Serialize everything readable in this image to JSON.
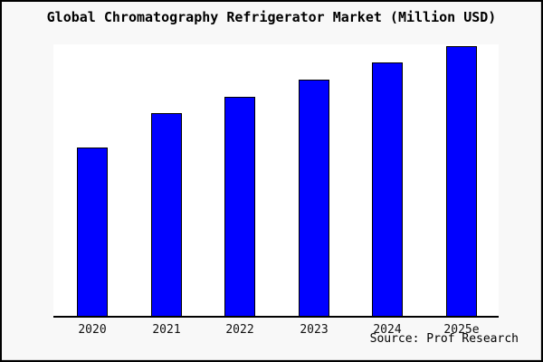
{
  "page": {
    "background_color": "#f8f8f8",
    "border_color": "#000000"
  },
  "chart_data": {
    "type": "bar",
    "title": "Global Chromatography Refrigerator Market (Million USD)",
    "categories": [
      "2020",
      "2021",
      "2022",
      "2023",
      "2024",
      "2025e"
    ],
    "values": [
      100,
      120,
      130,
      140,
      150,
      160
    ],
    "xlabel": "",
    "ylabel": "",
    "ylim": [
      0,
      161
    ],
    "grid": false,
    "legend": false,
    "bar_color": "#0000ff",
    "bar_border_color": "#000000",
    "plot_background": "#ffffff",
    "axis_color": "#000000",
    "source_label": "Source: Prof Research"
  }
}
